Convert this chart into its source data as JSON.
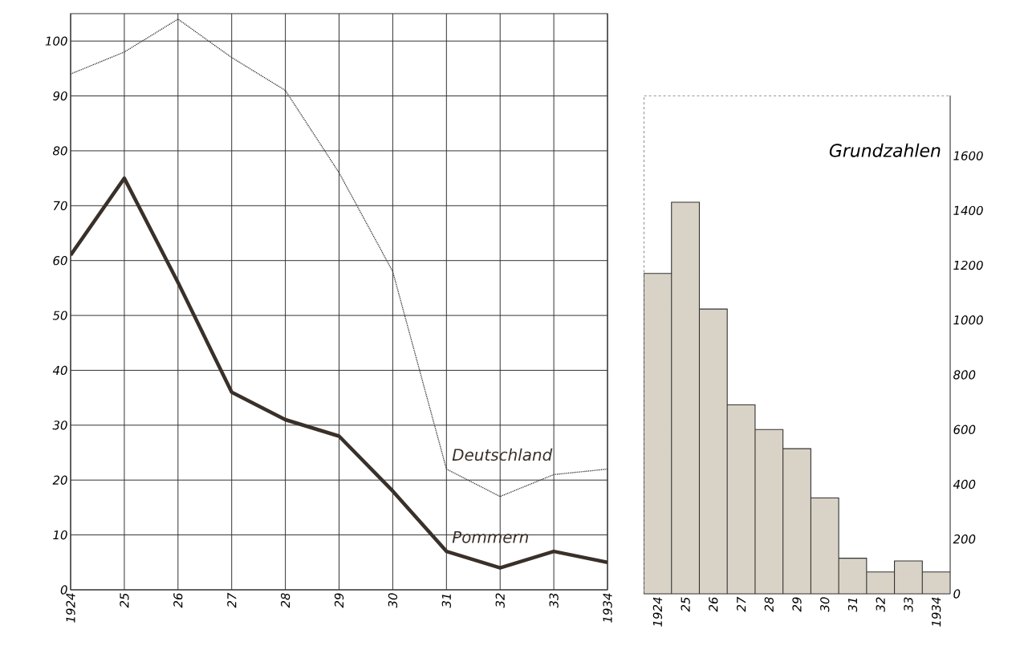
{
  "chart_data": [
    {
      "type": "line",
      "categories": [
        "1924",
        "25",
        "26",
        "27",
        "28",
        "29",
        "30",
        "31",
        "32",
        "33",
        "1934"
      ],
      "series": [
        {
          "name": "Deutschland",
          "color": "#3a302a",
          "line_style": "dotted",
          "values": [
            94,
            98,
            104,
            97,
            91,
            76,
            58,
            22,
            17,
            21,
            22
          ]
        },
        {
          "name": "Pommern",
          "color": "#3a302a",
          "line_style": "solid",
          "values": [
            61,
            75,
            56,
            36,
            31,
            28,
            18,
            7,
            4,
            7,
            5
          ]
        }
      ],
      "ylim": [
        0,
        105
      ],
      "yticks": [
        0,
        10,
        20,
        30,
        40,
        50,
        60,
        70,
        80,
        90,
        100
      ],
      "grid": true
    },
    {
      "type": "bar",
      "title": "Grundzahlen",
      "categories": [
        "1924",
        "25",
        "26",
        "27",
        "28",
        "29",
        "30",
        "31",
        "32",
        "33",
        "1934"
      ],
      "values": [
        1170,
        1430,
        1040,
        690,
        600,
        530,
        350,
        130,
        80,
        120,
        80
      ],
      "color": "#d9d3c7",
      "ylim": [
        0,
        1820
      ],
      "yticks": [
        0,
        200,
        400,
        600,
        800,
        1000,
        1200,
        1400,
        1600
      ]
    }
  ]
}
